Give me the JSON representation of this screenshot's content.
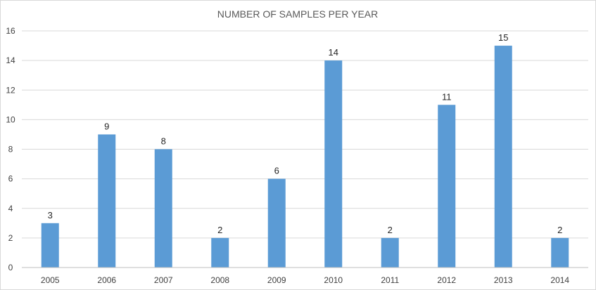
{
  "chart_data": {
    "type": "bar",
    "title": "NUMBER OF SAMPLES PER YEAR",
    "xlabel": "",
    "ylabel": "",
    "categories": [
      "2005",
      "2006",
      "2007",
      "2008",
      "2009",
      "2010",
      "2011",
      "2012",
      "2013",
      "2014"
    ],
    "values": [
      3,
      9,
      8,
      2,
      6,
      14,
      2,
      11,
      15,
      2
    ],
    "ylim": [
      0,
      16
    ],
    "yticks": [
      0,
      2,
      4,
      6,
      8,
      10,
      12,
      14,
      16
    ],
    "grid": true,
    "legend": "none",
    "data_labels": true,
    "colors": {
      "bar": "#5b9bd5",
      "grid": "#d9d9d9",
      "axis": "#bfbfbf"
    }
  }
}
